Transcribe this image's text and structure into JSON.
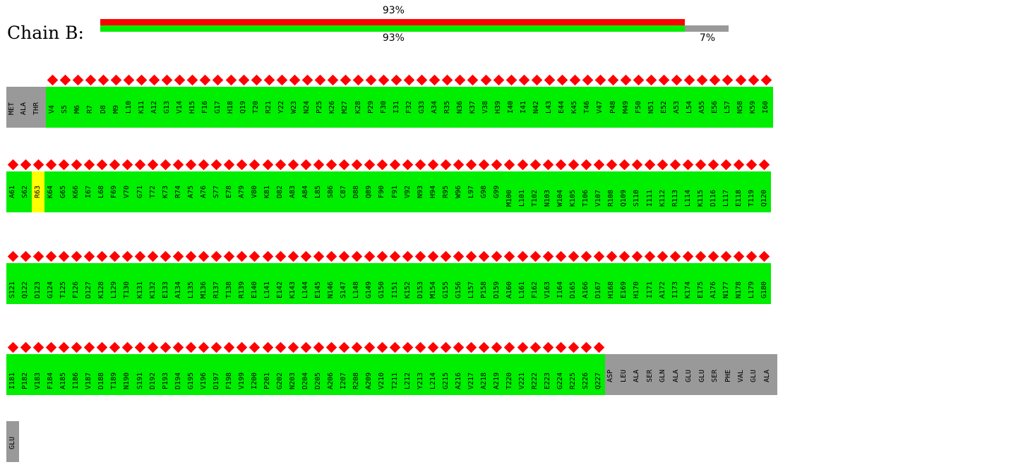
{
  "chain_label": "Chain B:",
  "quality": {
    "top_percent": "93%",
    "bottom_percent": "93%",
    "gap_percent": "7%",
    "top_fraction": 0.93,
    "bottom_fraction": 0.93,
    "gap_fraction": 0.07
  },
  "colors": {
    "outlier": "#ff0000",
    "good": "#00ee00",
    "unmodelled": "#999999",
    "minor": "#ffff00"
  },
  "rows": [
    {
      "gray_prefix": [
        "MET",
        "ALA",
        "THR"
      ],
      "residues": [
        "V4",
        "S5",
        "M6",
        "R7",
        "D8",
        "M9",
        "L10",
        "K11",
        "A12",
        "G13",
        "V14",
        "H15",
        "F16",
        "G17",
        "H18",
        "Q19",
        "T20",
        "R21",
        "Y22",
        "W23",
        "N24",
        "P25",
        "K26",
        "M27",
        "K28",
        "P29",
        "F30",
        "I31",
        "F32",
        "G33",
        "A34",
        "R35",
        "N36",
        "K37",
        "V38",
        "H39",
        "I40",
        "I41",
        "N42",
        "L43",
        "E44",
        "K45",
        "T46",
        "V47",
        "P48",
        "M49",
        "F50",
        "N51",
        "E52",
        "A53",
        "L54",
        "A55",
        "E56",
        "L57",
        "N58",
        "K59",
        "I60"
      ],
      "gray_suffix": []
    },
    {
      "gray_prefix": [],
      "residues": [
        "A61",
        "S62",
        "R63",
        "K64",
        "G65",
        "K66",
        "I67",
        "L68",
        "F69",
        "V70",
        "G71",
        "T72",
        "K73",
        "R74",
        "A75",
        "A76",
        "S77",
        "E78",
        "A79",
        "V80",
        "K81",
        "D82",
        "A83",
        "A84",
        "L85",
        "S86",
        "C87",
        "D88",
        "Q89",
        "F90",
        "F91",
        "V92",
        "N93",
        "H94",
        "R95",
        "W96",
        "L97",
        "G98",
        "G99",
        "M100",
        "L101",
        "T102",
        "N103",
        "W104",
        "K105",
        "T106",
        "V107",
        "R108",
        "Q109",
        "S110",
        "I111",
        "K112",
        "R113",
        "L114",
        "K115",
        "D116",
        "L117",
        "E118",
        "T119",
        "Q120"
      ],
      "gray_suffix": []
    },
    {
      "gray_prefix": [],
      "residues": [
        "S121",
        "Q122",
        "D123",
        "G124",
        "T125",
        "F126",
        "D127",
        "K128",
        "L129",
        "T130",
        "K131",
        "K132",
        "E133",
        "A134",
        "L135",
        "M136",
        "R137",
        "T138",
        "R139",
        "E140",
        "L141",
        "E142",
        "K143",
        "L144",
        "E145",
        "N146",
        "S147",
        "L148",
        "G149",
        "G150",
        "I151",
        "K152",
        "D153",
        "M154",
        "G155",
        "G156",
        "L157",
        "P158",
        "D159",
        "A160",
        "L161",
        "F162",
        "V163",
        "I164",
        "D165",
        "A166",
        "D167",
        "H168",
        "E169",
        "H170",
        "I171",
        "A172",
        "I173",
        "K174",
        "E175",
        "A176",
        "N177",
        "N178",
        "L179",
        "G180"
      ],
      "gray_suffix": []
    },
    {
      "gray_prefix": [],
      "residues": [
        "I181",
        "P182",
        "V183",
        "F184",
        "A185",
        "I186",
        "V187",
        "D188",
        "T189",
        "N190",
        "S191",
        "D192",
        "P193",
        "D194",
        "G195",
        "V196",
        "D197",
        "F198",
        "V199",
        "I200",
        "P201",
        "G202",
        "N203",
        "D204",
        "D205",
        "A206",
        "I207",
        "R208",
        "A209",
        "V210",
        "T211",
        "L212",
        "Y213",
        "L214",
        "G215",
        "A216",
        "V217",
        "A218",
        "A219",
        "T220",
        "V221",
        "R222",
        "E223",
        "G224",
        "R225",
        "S226",
        "Q227"
      ],
      "gray_suffix": [
        "ASP",
        "LEU",
        "ALA",
        "SER",
        "GLN",
        "ALA",
        "GLU",
        "GLU",
        "SER",
        "PHE",
        "VAL",
        "GLU",
        "ALA"
      ]
    },
    {
      "gray_prefix": [],
      "residues": [],
      "gray_suffix": [
        "GLU"
      ]
    }
  ],
  "yellow_residues": [
    "R63"
  ]
}
